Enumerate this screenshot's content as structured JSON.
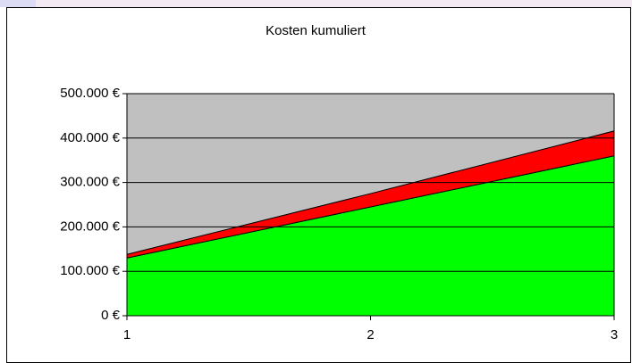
{
  "chart_data": {
    "type": "stacked_area",
    "title": "Kosten kumuliert",
    "categories": [
      "1",
      "2",
      "3"
    ],
    "series": [
      {
        "color": "#00ff00",
        "values": [
          130000,
          245000,
          360000
        ]
      },
      {
        "color": "#ff0000",
        "values": [
          8000,
          30000,
          56000
        ]
      }
    ],
    "ylim": [
      0,
      500000
    ],
    "yticks": [
      {
        "value": 0,
        "label": "0 €"
      },
      {
        "value": 100000,
        "label": "100.000 €"
      },
      {
        "value": 200000,
        "label": "200.000 €"
      },
      {
        "value": 300000,
        "label": "300.000 €"
      },
      {
        "value": 400000,
        "label": "400.000 €"
      },
      {
        "value": 500000,
        "label": "500.000 €"
      }
    ],
    "grid": true,
    "plot_background": "#c0c0c0"
  }
}
